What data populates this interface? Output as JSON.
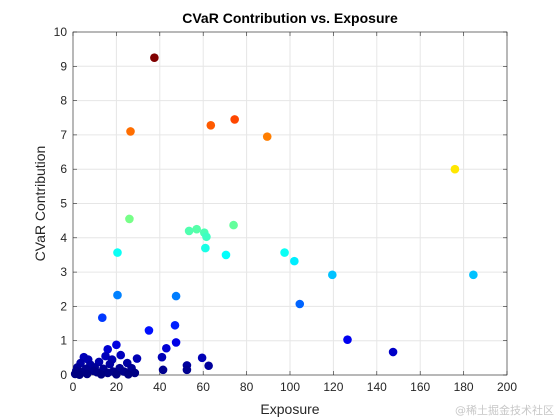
{
  "chart_data": {
    "type": "scatter",
    "title": "CVaR Contribution vs. Exposure",
    "xlabel": "Exposure",
    "ylabel": "CVaR Contribution",
    "xlim": [
      0,
      200
    ],
    "ylim": [
      0,
      10
    ],
    "xticks": [
      "0",
      "20",
      "40",
      "60",
      "80",
      "100",
      "120",
      "140",
      "160",
      "180",
      "200"
    ],
    "yticks": [
      "0",
      "1",
      "2",
      "3",
      "4",
      "5",
      "6",
      "7",
      "8",
      "9",
      "10"
    ],
    "grid": true,
    "colormap": "jet",
    "color_by": "y",
    "points": [
      {
        "x": 37.5,
        "y": 9.25
      },
      {
        "x": 74.5,
        "y": 7.45
      },
      {
        "x": 63.5,
        "y": 7.28
      },
      {
        "x": 26.5,
        "y": 7.1
      },
      {
        "x": 89.5,
        "y": 6.95
      },
      {
        "x": 176,
        "y": 6.0
      },
      {
        "x": 26,
        "y": 4.55
      },
      {
        "x": 74,
        "y": 4.37
      },
      {
        "x": 57,
        "y": 4.25
      },
      {
        "x": 53.5,
        "y": 4.2
      },
      {
        "x": 60.5,
        "y": 4.15
      },
      {
        "x": 61.5,
        "y": 4.03
      },
      {
        "x": 61,
        "y": 3.7
      },
      {
        "x": 20.5,
        "y": 3.57
      },
      {
        "x": 97.5,
        "y": 3.57
      },
      {
        "x": 70.5,
        "y": 3.5
      },
      {
        "x": 102,
        "y": 3.32
      },
      {
        "x": 119.5,
        "y": 2.92
      },
      {
        "x": 184.5,
        "y": 2.92
      },
      {
        "x": 20.5,
        "y": 2.33
      },
      {
        "x": 47.5,
        "y": 2.3
      },
      {
        "x": 104.5,
        "y": 2.07
      },
      {
        "x": 13.5,
        "y": 1.67
      },
      {
        "x": 47,
        "y": 1.45
      },
      {
        "x": 35,
        "y": 1.3
      },
      {
        "x": 126.5,
        "y": 1.03
      },
      {
        "x": 47.5,
        "y": 0.95
      },
      {
        "x": 20,
        "y": 0.88
      },
      {
        "x": 43,
        "y": 0.78
      },
      {
        "x": 16,
        "y": 0.75
      },
      {
        "x": 147.5,
        "y": 0.67
      },
      {
        "x": 22,
        "y": 0.58
      },
      {
        "x": 15,
        "y": 0.55
      },
      {
        "x": 5,
        "y": 0.52
      },
      {
        "x": 41,
        "y": 0.52
      },
      {
        "x": 59.5,
        "y": 0.5
      },
      {
        "x": 29.5,
        "y": 0.48
      },
      {
        "x": 18,
        "y": 0.45
      },
      {
        "x": 7,
        "y": 0.45
      },
      {
        "x": 12,
        "y": 0.38
      },
      {
        "x": 3.5,
        "y": 0.35
      },
      {
        "x": 25,
        "y": 0.35
      },
      {
        "x": 8,
        "y": 0.3
      },
      {
        "x": 17,
        "y": 0.32
      },
      {
        "x": 52.5,
        "y": 0.28
      },
      {
        "x": 62.5,
        "y": 0.27
      },
      {
        "x": 2,
        "y": 0.22
      },
      {
        "x": 10,
        "y": 0.22
      },
      {
        "x": 21.5,
        "y": 0.2
      },
      {
        "x": 27,
        "y": 0.2
      },
      {
        "x": 6,
        "y": 0.18
      },
      {
        "x": 14,
        "y": 0.18
      },
      {
        "x": 41.5,
        "y": 0.15
      },
      {
        "x": 52.5,
        "y": 0.15
      },
      {
        "x": 1.5,
        "y": 0.12
      },
      {
        "x": 9.5,
        "y": 0.12
      },
      {
        "x": 18.5,
        "y": 0.1
      },
      {
        "x": 23.5,
        "y": 0.1
      },
      {
        "x": 4,
        "y": 0.08
      },
      {
        "x": 11,
        "y": 0.08
      },
      {
        "x": 16,
        "y": 0.06
      },
      {
        "x": 28.5,
        "y": 0.06
      },
      {
        "x": 1,
        "y": 0.03
      },
      {
        "x": 6.5,
        "y": 0.03
      },
      {
        "x": 13,
        "y": 0.02
      },
      {
        "x": 20,
        "y": 0.02
      },
      {
        "x": 25.5,
        "y": 0.02
      },
      {
        "x": 3,
        "y": 0.01
      }
    ]
  },
  "watermark": "@稀土掘金技术社区"
}
